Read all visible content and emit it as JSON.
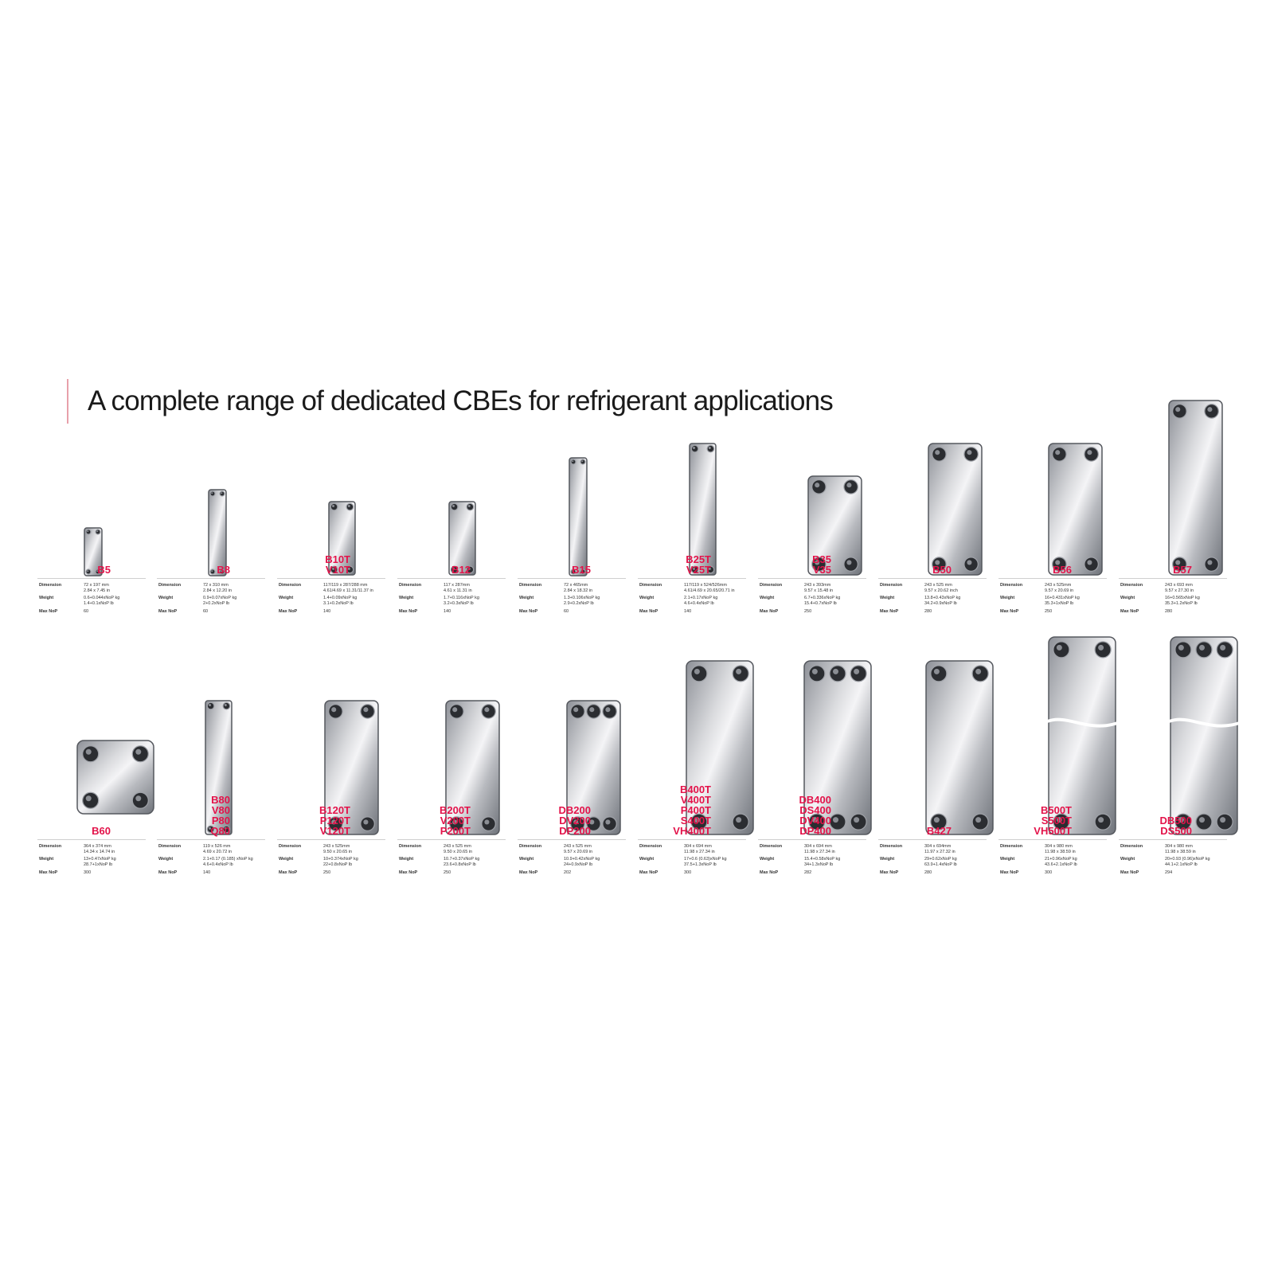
{
  "title": "A complete range of dedicated CBEs for refrigerant applications",
  "colors": {
    "model_name": "#e3134a",
    "title_accent": "#e8a0aa",
    "plate_light": "#f4f4f6",
    "plate_dark": "#6f737a"
  },
  "spec_labels": {
    "dimension": "Dimension",
    "weight": "Weight",
    "max_nop": "Max NoP"
  },
  "products": [
    {
      "names": [
        "B5"
      ],
      "dimension": [
        "72 x 197 mm",
        "2.84 x 7.45 in"
      ],
      "weight": [
        "0.6+0.044xNoP kg",
        "1.4+0.1xNoP lb"
      ],
      "max_nop": "60",
      "holes": 2
    },
    {
      "names": [
        "B8"
      ],
      "dimension": [
        "72 x 310 mm",
        "2.84 x 12.20 in"
      ],
      "weight": [
        "0.9+0.07xNoP kg",
        "2+0.2xNoP lb"
      ],
      "max_nop": "60",
      "holes": 2
    },
    {
      "names": [
        "B10T",
        "V10T"
      ],
      "dimension": [
        "117/119 x 287/288 mm",
        "4.61/4.69 x 11.31/11.37 in"
      ],
      "weight": [
        "1.4+0.09xNoP kg",
        "3.1+0.2xNoP lb"
      ],
      "max_nop": "140",
      "holes": 2
    },
    {
      "names": [
        "B12"
      ],
      "dimension": [
        "117 x 287mm",
        "4.61 x 11.31 in"
      ],
      "weight": [
        "1.7+0.116xNoP kg",
        "3.2+0.3xNoP lb"
      ],
      "max_nop": "140",
      "holes": 2
    },
    {
      "names": [
        "B15"
      ],
      "dimension": [
        "72 x 465mm",
        "2.84 x 18.32 in"
      ],
      "weight": [
        "1.3+0.106xNoP kg",
        "2.9+0.2xNoP lb"
      ],
      "max_nop": "60",
      "holes": 2
    },
    {
      "names": [
        "B25T",
        "V25T"
      ],
      "dimension": [
        "117/119 x 524/526mm",
        "4.61/4.69 x 20.65/20.71 in"
      ],
      "weight": [
        "2.1+0.17xNoP kg",
        "4.6+0.4xNoP lb"
      ],
      "max_nop": "140",
      "holes": 2
    },
    {
      "names": [
        "B35",
        "V35"
      ],
      "dimension": [
        "243 x 393mm",
        "9.57 x 15.48 in"
      ],
      "weight": [
        "6.7+0.336xNoP kg",
        "15.4+0.7xNoP lb"
      ],
      "max_nop": "250",
      "holes": 2
    },
    {
      "names": [
        "B50"
      ],
      "dimension": [
        "243 x 525 mm",
        "9.57 x 20.62 inch"
      ],
      "weight": [
        "13.8+0.43xNoP kg",
        "34.2+0.9xNoP lb"
      ],
      "max_nop": "280",
      "holes": 2
    },
    {
      "names": [
        "B56"
      ],
      "dimension": [
        "243 x 525mm",
        "9.57 x 20.69 in"
      ],
      "weight": [
        "16+0.431xNoP kg",
        "35.3+1xNoP lb"
      ],
      "max_nop": "250",
      "holes": 2
    },
    {
      "names": [
        "B57"
      ],
      "dimension": [
        "243 x 693 mm",
        "9.57 x 27.30 in"
      ],
      "weight": [
        "16+0.565xNoP kg",
        "35.3+1.2xNoP lb"
      ],
      "max_nop": "280",
      "holes": 2
    },
    {
      "names": [
        "B60"
      ],
      "dimension": [
        "364 x 374 mm",
        "14.34 x 14.74 in"
      ],
      "weight": [
        "13+0.47xNoP kg",
        "28.7+1xNoP lb"
      ],
      "max_nop": "300",
      "holes": 2
    },
    {
      "names": [
        "B80",
        "V80",
        "P80",
        "Q80"
      ],
      "dimension": [
        "119 x 526 mm",
        "4.69 x 20.72 in"
      ],
      "weight": [
        "2.1+0.17 (0.185) xNoP kg",
        "4.6+0.4xNoP lb"
      ],
      "max_nop": "140",
      "holes": 2
    },
    {
      "names": [
        "B120T",
        "P120T",
        "V120T"
      ],
      "dimension": [
        "243 x 525mm",
        "9.50 x 20.65 in"
      ],
      "weight": [
        "10+0.374xNoP kg",
        "22+0.8xNoP lb"
      ],
      "max_nop": "250",
      "holes": 2
    },
    {
      "names": [
        "B200T",
        "V200T",
        "P200T"
      ],
      "dimension": [
        "243 x 525 mm",
        "9.50 x 20.65 in"
      ],
      "weight": [
        "10.7+0.37xNoP kg",
        "23.6+0.8xNoP lb"
      ],
      "max_nop": "250",
      "holes": 2
    },
    {
      "names": [
        "DB200",
        "DV200",
        "DP200"
      ],
      "dimension": [
        "243 x 525 mm",
        "9.57 x 20.69 in"
      ],
      "weight": [
        "10.9+0.42xNoP kg",
        "24+0.9xNoP lb"
      ],
      "max_nop": "202",
      "holes": 3
    },
    {
      "names": [
        "B400T",
        "V400T",
        "P400T",
        "S400T",
        "VH400T"
      ],
      "dimension": [
        "304 x 694 mm",
        "11.98 x 27.34 in"
      ],
      "weight": [
        "17+0.6 (0.63)xNoP kg",
        "37.5+1.3xNoP lb"
      ],
      "max_nop": "300",
      "holes": 2
    },
    {
      "names": [
        "DB400",
        "DS400",
        "DV400",
        "DP400"
      ],
      "dimension": [
        "304 x 694 mm",
        "11.98 x 27.34 in"
      ],
      "weight": [
        "15.4+0.58xNoP kg",
        "34+1.3xNoP lb"
      ],
      "max_nop": "282",
      "holes": 3
    },
    {
      "names": [
        "B427"
      ],
      "dimension": [
        "304 x 694mm",
        "11.97 x 27.32 in"
      ],
      "weight": [
        "29+0.62xNoP kg",
        "63.9+1.4xNoP lb"
      ],
      "max_nop": "280",
      "holes": 2
    },
    {
      "names": [
        "B500T",
        "S500T",
        "VH500T"
      ],
      "dimension": [
        "304 x 980 mm",
        "11.98 x 38.59 in"
      ],
      "weight": [
        "21+0.96xNoP kg",
        "43.6+2.1xNoP lb"
      ],
      "max_nop": "300",
      "holes": 2,
      "cut": true
    },
    {
      "names": [
        "DB500",
        "DS500"
      ],
      "dimension": [
        "304 x 980 mm",
        "11.98 x 38.59 in"
      ],
      "weight": [
        "20+0.93 (0.96)xNoP kg",
        "44.1+2.1xNoP lb"
      ],
      "max_nop": "294",
      "holes": 3,
      "cut": true
    }
  ]
}
